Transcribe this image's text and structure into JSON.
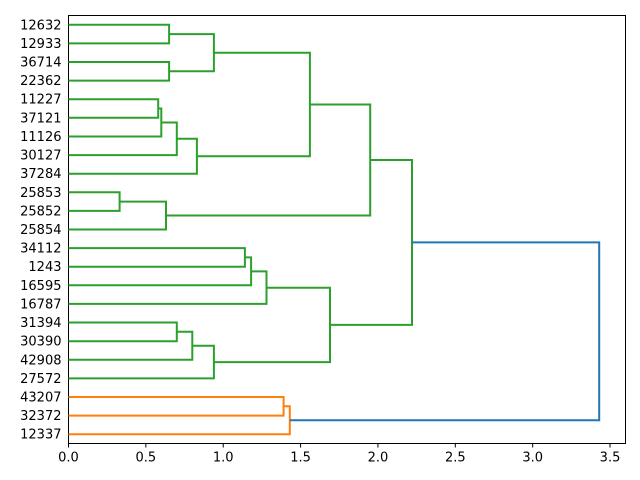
{
  "figure": {
    "title": "",
    "background": "#ffffff"
  },
  "chart_data": {
    "type": "dendrogram",
    "orientation": "leaves-left-root-right",
    "title": "",
    "xlabel": "",
    "ylabel": "",
    "grid": false,
    "xlim": [
      0,
      3.6
    ],
    "x_ticks": [
      0.0,
      0.5,
      1.0,
      1.5,
      2.0,
      2.5,
      3.0,
      3.5
    ],
    "leaf_labels": [
      "12632",
      "12933",
      "36714",
      "22362",
      "11227",
      "37121",
      "11126",
      "30127",
      "37284",
      "25853",
      "25852",
      "25854",
      "34112",
      "1243",
      "16595",
      "16787",
      "31394",
      "30390",
      "42908",
      "27572",
      "43207",
      "32372",
      "12337"
    ],
    "colors": {
      "cluster_green": "#2ca02c",
      "cluster_orange": "#ff7f0e",
      "above_threshold_link": "#1f77b4",
      "axis": "#000000"
    },
    "merges": [
      {
        "id": "G1",
        "a": "L0",
        "b": "L1",
        "dist": 0.65,
        "color": "#2ca02c"
      },
      {
        "id": "G2",
        "a": "L2",
        "b": "L3",
        "dist": 0.65,
        "color": "#2ca02c"
      },
      {
        "id": "G3",
        "a": "G1",
        "b": "G2",
        "dist": 0.94,
        "color": "#2ca02c"
      },
      {
        "id": "G4",
        "a": "L4",
        "b": "L5",
        "dist": 0.58,
        "color": "#2ca02c"
      },
      {
        "id": "G5",
        "a": "G4",
        "b": "L6",
        "dist": 0.6,
        "color": "#2ca02c"
      },
      {
        "id": "G6",
        "a": "G5",
        "b": "L7",
        "dist": 0.7,
        "color": "#2ca02c"
      },
      {
        "id": "G7",
        "a": "G6",
        "b": "L8",
        "dist": 0.83,
        "color": "#2ca02c"
      },
      {
        "id": "G8",
        "a": "G3",
        "b": "G7",
        "dist": 1.56,
        "color": "#2ca02c"
      },
      {
        "id": "G9",
        "a": "L9",
        "b": "L10",
        "dist": 0.33,
        "color": "#2ca02c"
      },
      {
        "id": "G10",
        "a": "G9",
        "b": "L11",
        "dist": 0.63,
        "color": "#2ca02c"
      },
      {
        "id": "G11",
        "a": "G8",
        "b": "G10",
        "dist": 1.95,
        "color": "#2ca02c"
      },
      {
        "id": "G12",
        "a": "L12",
        "b": "L13",
        "dist": 1.14,
        "color": "#2ca02c"
      },
      {
        "id": "G13",
        "a": "G12",
        "b": "L14",
        "dist": 1.18,
        "color": "#2ca02c"
      },
      {
        "id": "G14",
        "a": "G13",
        "b": "L15",
        "dist": 1.28,
        "color": "#2ca02c"
      },
      {
        "id": "G15",
        "a": "L16",
        "b": "L17",
        "dist": 0.7,
        "color": "#2ca02c"
      },
      {
        "id": "G16",
        "a": "G15",
        "b": "L18",
        "dist": 0.8,
        "color": "#2ca02c"
      },
      {
        "id": "G17",
        "a": "G16",
        "b": "L19",
        "dist": 0.94,
        "color": "#2ca02c"
      },
      {
        "id": "G18",
        "a": "G14",
        "b": "G17",
        "dist": 1.69,
        "color": "#2ca02c"
      },
      {
        "id": "G19",
        "a": "G11",
        "b": "G18",
        "dist": 2.22,
        "color": "#2ca02c"
      },
      {
        "id": "O1",
        "a": "L20",
        "b": "L21",
        "dist": 1.39,
        "color": "#ff7f0e"
      },
      {
        "id": "O2",
        "a": "O1",
        "b": "L22",
        "dist": 1.43,
        "color": "#ff7f0e"
      },
      {
        "id": "B1",
        "a": "G19",
        "b": "O2",
        "dist": 3.43,
        "color": "#1f77b4"
      }
    ]
  }
}
